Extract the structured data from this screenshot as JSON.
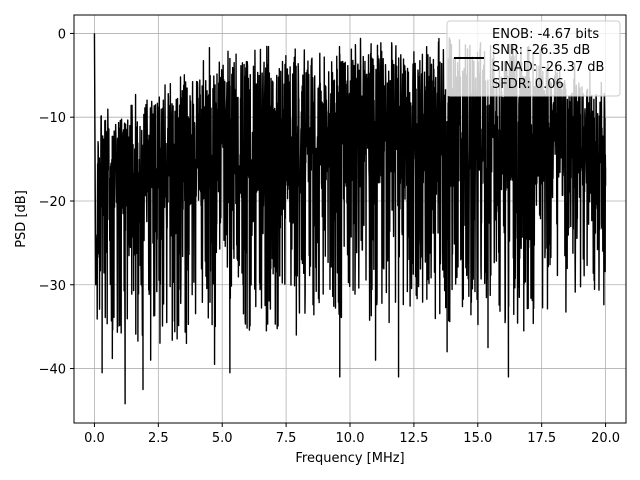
{
  "chart_data": {
    "type": "line",
    "xlabel": "Frequency [MHz]",
    "ylabel": "PSD [dB]",
    "xlim": [
      -0.8,
      20.8
    ],
    "ylim": [
      -46.5,
      2.2
    ],
    "xticks": [
      0.0,
      2.5,
      5.0,
      7.5,
      10.0,
      12.5,
      15.0,
      17.5,
      20.0
    ],
    "xtick_labels": [
      "0.0",
      "2.5",
      "5.0",
      "7.5",
      "10.0",
      "12.5",
      "15.0",
      "17.5",
      "20.0"
    ],
    "yticks": [
      0,
      -10,
      -20,
      -30,
      -40
    ],
    "ytick_labels": [
      "0",
      "−10",
      "−20",
      "−30",
      "−40"
    ],
    "grid": true,
    "legend_position": "top-right",
    "line_color": "#000000",
    "series": [
      {
        "legend_lines": [
          "ENOB: -4.67 bits",
          "SNR: -26.35 dB",
          "SINAD: -26.37 dB",
          "SFDR: 0.06"
        ],
        "description_points": [
          [
            0.0,
            0.0
          ],
          [
            0.05,
            -30.0
          ],
          [
            0.3,
            -40.5
          ],
          [
            0.7,
            -38.8
          ],
          [
            1.2,
            -44.2
          ],
          [
            1.9,
            -42.5
          ],
          [
            2.2,
            -39.0
          ],
          [
            3.6,
            -37.0
          ],
          [
            4.7,
            -39.5
          ],
          [
            5.3,
            -40.5
          ],
          [
            7.9,
            -36.0
          ],
          [
            9.6,
            -41.0
          ],
          [
            11.0,
            -39.0
          ],
          [
            11.9,
            -41.0
          ],
          [
            13.8,
            -38.0
          ],
          [
            15.4,
            -37.5
          ],
          [
            16.2,
            -41.0
          ],
          [
            16.8,
            -35.5
          ],
          [
            4.5,
            -1.7
          ],
          [
            5.3,
            -3.0
          ],
          [
            7.8,
            -3.5
          ],
          [
            9.6,
            -2.5
          ],
          [
            12.5,
            -2.2
          ],
          [
            15.5,
            -1.5
          ],
          [
            19.0,
            -6.5
          ],
          [
            20.0,
            -16.0
          ]
        ]
      }
    ],
    "envelope": {
      "upper": [
        [
          0.1,
          -10.5
        ],
        [
          1.0,
          -10.0
        ],
        [
          2.0,
          -8.5
        ],
        [
          3.0,
          -7.0
        ],
        [
          4.0,
          -5.5
        ],
        [
          5.0,
          -4.0
        ],
        [
          6.0,
          -3.5
        ],
        [
          8.0,
          -3.0
        ],
        [
          10.0,
          -2.5
        ],
        [
          12.0,
          -2.5
        ],
        [
          14.0,
          -2.5
        ],
        [
          16.0,
          -3.0
        ],
        [
          18.0,
          -4.0
        ],
        [
          19.0,
          -5.5
        ],
        [
          20.0,
          -8.0
        ]
      ],
      "lower": [
        [
          0.1,
          -30.0
        ],
        [
          1.0,
          -31.0
        ],
        [
          2.0,
          -31.5
        ],
        [
          3.0,
          -31.0
        ],
        [
          4.0,
          -30.0
        ],
        [
          5.0,
          -30.0
        ],
        [
          6.0,
          -30.0
        ],
        [
          8.0,
          -29.0
        ],
        [
          10.0,
          -28.5
        ],
        [
          12.0,
          -29.0
        ],
        [
          14.0,
          -29.0
        ],
        [
          16.0,
          -29.0
        ],
        [
          18.0,
          -28.5
        ],
        [
          20.0,
          -27.0
        ]
      ]
    }
  }
}
